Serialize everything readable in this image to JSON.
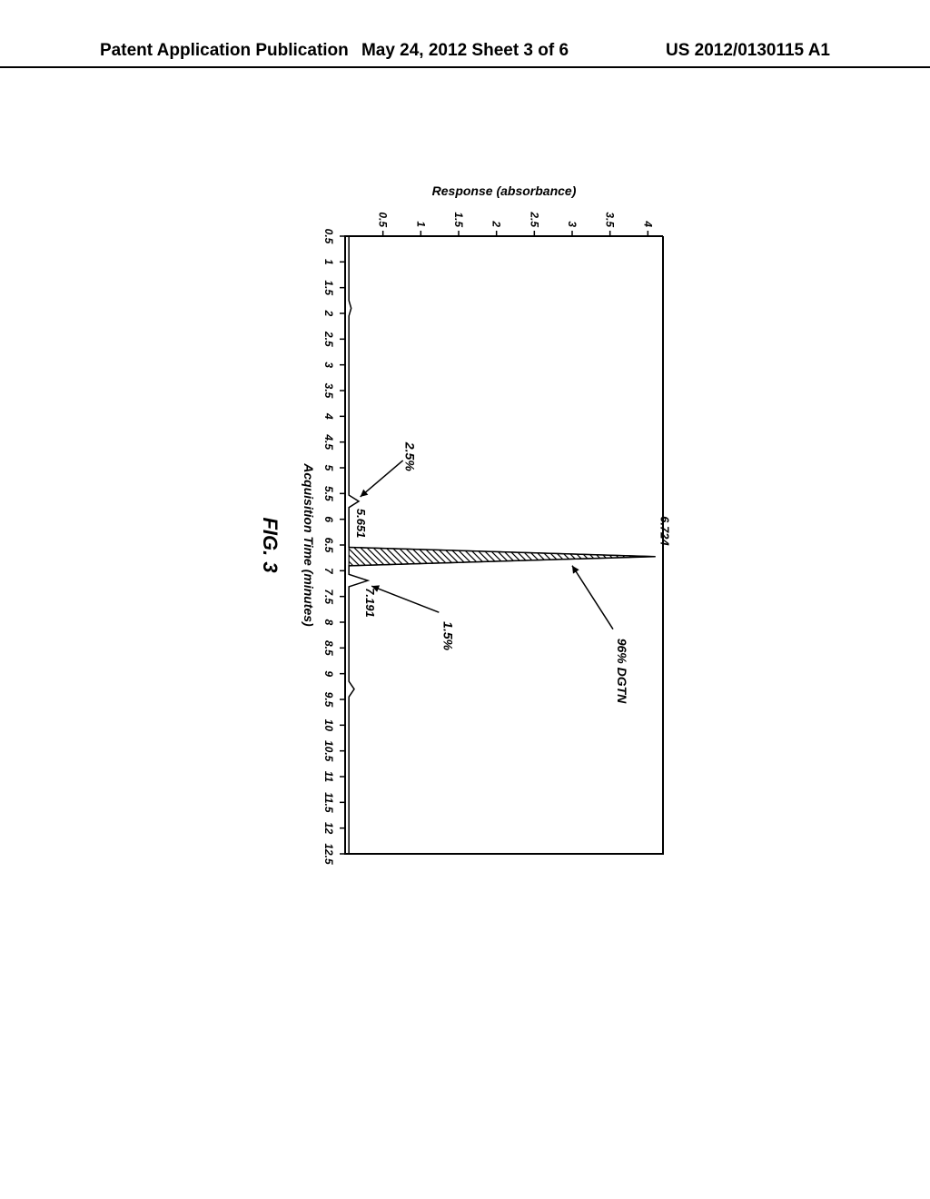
{
  "header": {
    "left": "Patent Application Publication",
    "center": "May 24, 2012  Sheet 3 of 6",
    "right": "US 2012/0130115 A1"
  },
  "figure_label": "FIG. 3",
  "chart": {
    "type": "line",
    "xlabel": "Acquisition Time (minutes)",
    "ylabel": "Response (absorbance)",
    "xlim": [
      0.5,
      12.5
    ],
    "ylim": [
      0,
      4.2
    ],
    "xticks": [
      0.5,
      1,
      1.5,
      2,
      2.5,
      3,
      3.5,
      4,
      4.5,
      5,
      5.5,
      6,
      6.5,
      7,
      7.5,
      8,
      8.5,
      9,
      9.5,
      10,
      10.5,
      11,
      11.5,
      12,
      12.5
    ],
    "yticks": [
      0.5,
      1,
      1.5,
      2,
      2.5,
      3,
      3.5,
      4
    ],
    "tick_label_fontsize": 12,
    "tick_label_weight": "bold",
    "tick_label_style": "italic",
    "axis_label_fontsize": 14,
    "axis_label_weight": "bold",
    "axis_label_style": "italic",
    "line_color": "#000000",
    "line_width": 1.5,
    "background_color": "#ffffff",
    "border_color": "#000000",
    "peaks": [
      {
        "retention_time": 5.651,
        "height": 0.18,
        "percent_label": "2.5%",
        "rt_label": "5.651"
      },
      {
        "retention_time": 6.724,
        "height": 4.1,
        "percent_label": "96% DGTN",
        "rt_label": "6.724",
        "hatched": true
      },
      {
        "retention_time": 7.191,
        "height": 0.3,
        "percent_label": "1.5%",
        "rt_label": "7.191"
      }
    ],
    "minor_bumps": [
      {
        "x": 1.9,
        "height": 0.08
      },
      {
        "x": 9.3,
        "height": 0.12
      }
    ]
  }
}
